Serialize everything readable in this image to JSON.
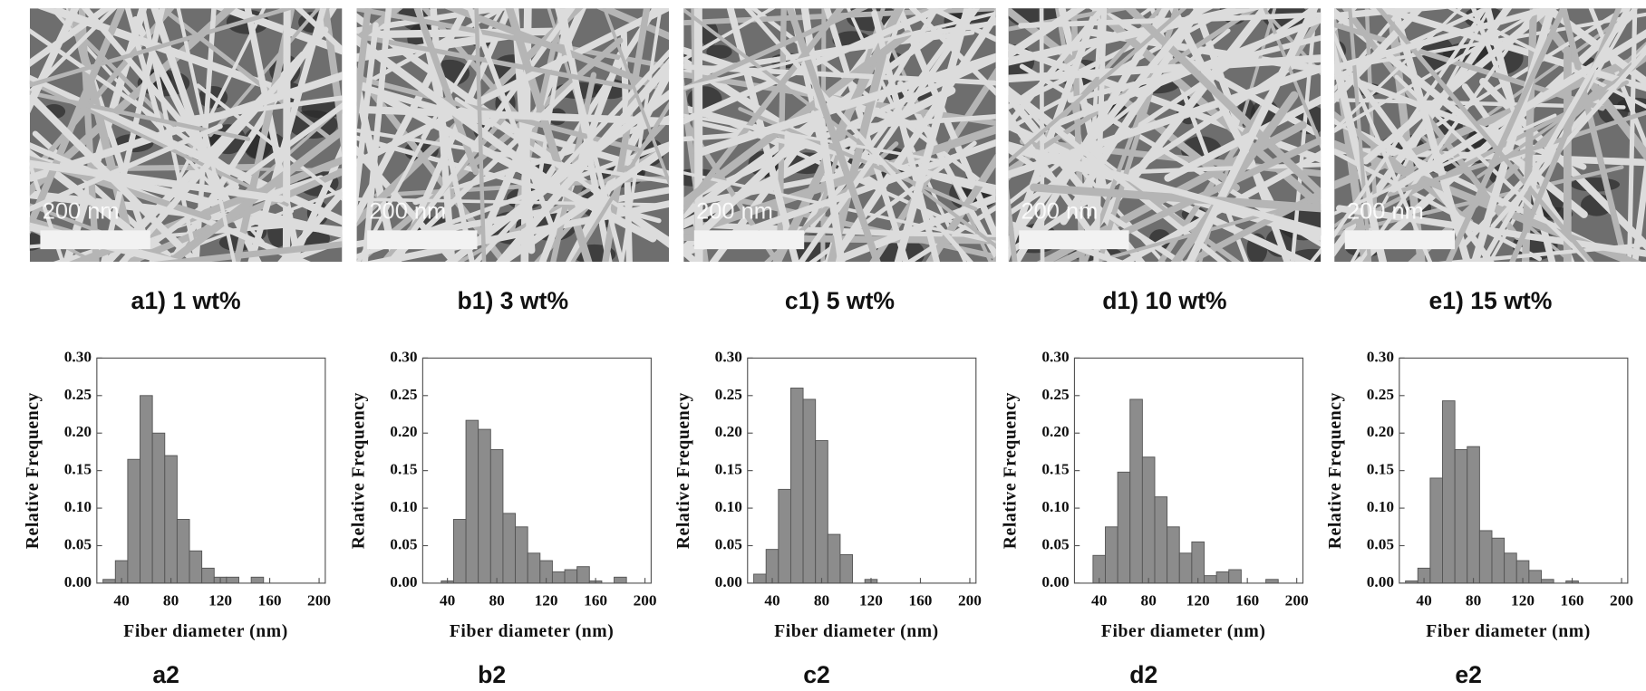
{
  "images": [
    {
      "scale_label": "200 nm",
      "caption": "a1) 1 wt%"
    },
    {
      "scale_label": "200 nm",
      "caption": "b1) 3 wt%"
    },
    {
      "scale_label": "200 nm",
      "caption": "c1) 5 wt%"
    },
    {
      "scale_label": "200 nm",
      "caption": "d1) 10 wt%"
    },
    {
      "scale_label": "200 nm",
      "caption": "e1) 15 wt%"
    }
  ],
  "chart_data": [
    {
      "type": "histogram",
      "panel_label": "a2",
      "x_label": "Fiber diameter (nm)",
      "y_label": "Relative Frequency",
      "color": "#8c8c8c",
      "bins": [
        25,
        35,
        45,
        55,
        65,
        75,
        85,
        95,
        105,
        115,
        125,
        135,
        145,
        155
      ],
      "values": [
        0.005,
        0.03,
        0.165,
        0.25,
        0.2,
        0.17,
        0.085,
        0.043,
        0.02,
        0.008,
        0.008,
        0,
        0.008
      ],
      "xlim": [
        20,
        205
      ],
      "ylim": [
        0,
        0.3
      ],
      "xticks": [
        40,
        80,
        120,
        160,
        200
      ],
      "yticks": [
        {
          "value": 0,
          "label": "0.00"
        },
        {
          "value": 0.05,
          "label": "0.05"
        },
        {
          "value": 0.1,
          "label": "0.10"
        },
        {
          "value": 0.15,
          "label": "0.15"
        },
        {
          "value": 0.2,
          "label": "0.20"
        },
        {
          "value": 0.25,
          "label": "0.25"
        },
        {
          "value": 0.3,
          "label": "0.30"
        }
      ]
    },
    {
      "type": "histogram",
      "panel_label": "b2",
      "x_label": "Fiber diameter (nm)",
      "y_label": "Relative Frequency",
      "color": "#8c8c8c",
      "bins": [
        35,
        45,
        55,
        65,
        75,
        85,
        95,
        105,
        115,
        125,
        135,
        145,
        155,
        165,
        175,
        185
      ],
      "values": [
        0.003,
        0.085,
        0.217,
        0.205,
        0.178,
        0.093,
        0.075,
        0.04,
        0.03,
        0.015,
        0.018,
        0.022,
        0.003,
        0,
        0.008
      ],
      "xlim": [
        20,
        205
      ],
      "ylim": [
        0,
        0.3
      ],
      "xticks": [
        40,
        80,
        120,
        160,
        200
      ],
      "yticks": [
        {
          "value": 0,
          "label": "0.00"
        },
        {
          "value": 0.05,
          "label": "0.05"
        },
        {
          "value": 0.1,
          "label": "0.10"
        },
        {
          "value": 0.15,
          "label": "0.15"
        },
        {
          "value": 0.2,
          "label": "0.20"
        },
        {
          "value": 0.25,
          "label": "0.25"
        },
        {
          "value": 0.3,
          "label": "0.30"
        }
      ]
    },
    {
      "type": "histogram",
      "panel_label": "c2",
      "x_label": "Fiber diameter (nm)",
      "y_label": "Relative Frequency",
      "color": "#8c8c8c",
      "bins": [
        25,
        35,
        45,
        55,
        65,
        75,
        85,
        95,
        105,
        115,
        125
      ],
      "values": [
        0.012,
        0.045,
        0.125,
        0.26,
        0.245,
        0.19,
        0.065,
        0.038,
        0,
        0.005
      ],
      "xlim": [
        20,
        205
      ],
      "ylim": [
        0,
        0.3
      ],
      "xticks": [
        40,
        80,
        120,
        160,
        200
      ],
      "yticks": [
        {
          "value": 0,
          "label": "0.00"
        },
        {
          "value": 0.05,
          "label": "0.05"
        },
        {
          "value": 0.1,
          "label": "0.10"
        },
        {
          "value": 0.15,
          "label": "0.15"
        },
        {
          "value": 0.2,
          "label": "0.20"
        },
        {
          "value": 0.25,
          "label": "0.25"
        },
        {
          "value": 0.3,
          "label": "0.30"
        }
      ]
    },
    {
      "type": "histogram",
      "panel_label": "d2",
      "x_label": "Fiber diameter (nm)",
      "y_label": "Relative Frequency",
      "color": "#8c8c8c",
      "bins": [
        35,
        45,
        55,
        65,
        75,
        85,
        95,
        105,
        115,
        125,
        135,
        145,
        155,
        165,
        175,
        185
      ],
      "values": [
        0.037,
        0.075,
        0.148,
        0.245,
        0.168,
        0.115,
        0.075,
        0.04,
        0.055,
        0.01,
        0.015,
        0.018,
        0,
        0,
        0.005
      ],
      "xlim": [
        20,
        205
      ],
      "ylim": [
        0,
        0.3
      ],
      "xticks": [
        40,
        80,
        120,
        160,
        200
      ],
      "yticks": [
        {
          "value": 0,
          "label": "0.00"
        },
        {
          "value": 0.05,
          "label": "0.05"
        },
        {
          "value": 0.1,
          "label": "0.10"
        },
        {
          "value": 0.15,
          "label": "0.15"
        },
        {
          "value": 0.2,
          "label": "0.20"
        },
        {
          "value": 0.25,
          "label": "0.25"
        },
        {
          "value": 0.3,
          "label": "0.30"
        }
      ]
    },
    {
      "type": "histogram",
      "panel_label": "e2",
      "x_label": "Fiber diameter (nm)",
      "y_label": "Relative Frequency",
      "color": "#8c8c8c",
      "bins": [
        25,
        35,
        45,
        55,
        65,
        75,
        85,
        95,
        105,
        115,
        125,
        135,
        145,
        155,
        165
      ],
      "values": [
        0.003,
        0.02,
        0.14,
        0.243,
        0.178,
        0.182,
        0.07,
        0.06,
        0.04,
        0.03,
        0.017,
        0.005,
        0,
        0.003
      ],
      "xlim": [
        20,
        205
      ],
      "ylim": [
        0,
        0.3
      ],
      "xticks": [
        40,
        80,
        120,
        160,
        200
      ],
      "yticks": [
        {
          "value": 0,
          "label": "0.00"
        },
        {
          "value": 0.05,
          "label": "0.05"
        },
        {
          "value": 0.1,
          "label": "0.10"
        },
        {
          "value": 0.15,
          "label": "0.15"
        },
        {
          "value": 0.2,
          "label": "0.20"
        },
        {
          "value": 0.25,
          "label": "0.25"
        },
        {
          "value": 0.3,
          "label": "0.30"
        }
      ]
    }
  ]
}
